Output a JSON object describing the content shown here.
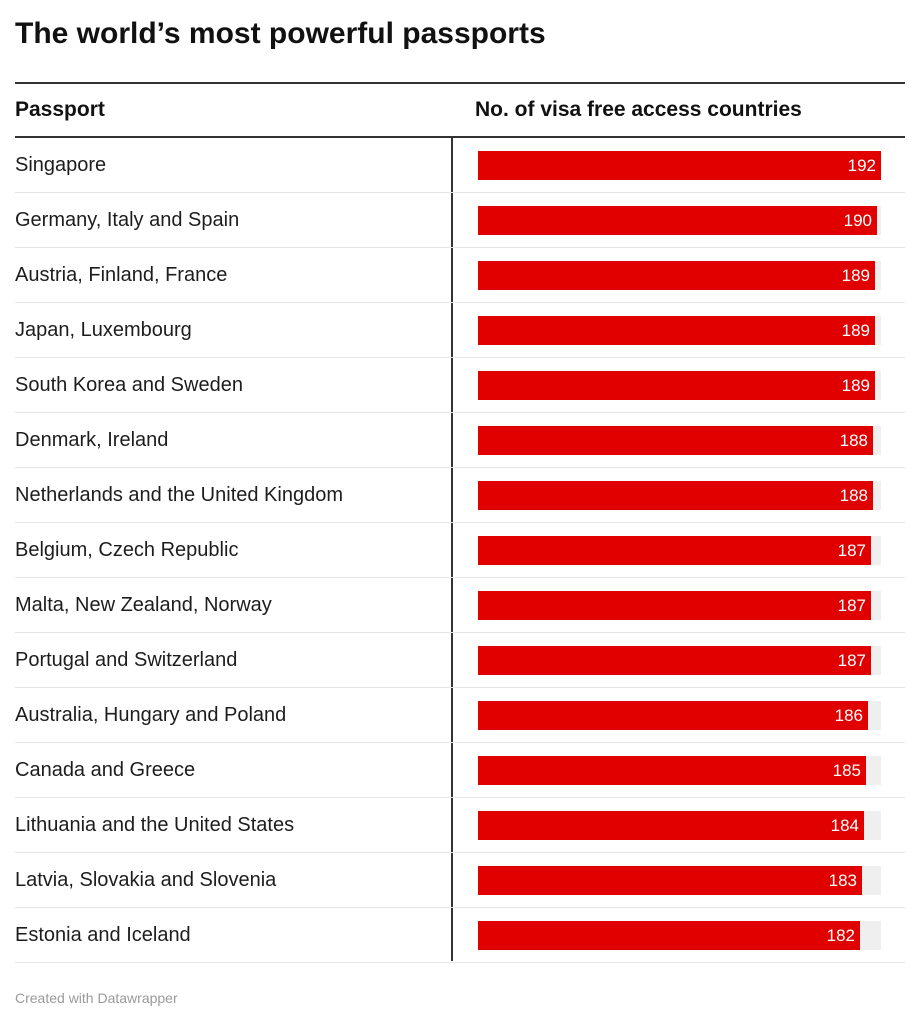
{
  "title": "The world’s most powerful passports",
  "headers": {
    "passport": "Passport",
    "visa": "No. of visa free access countries"
  },
  "credit": "Created with Datawrapper",
  "colors": {
    "bar": "#e00000",
    "bar_background": "#efefef",
    "rule": "#333333"
  },
  "chart_data": {
    "type": "bar",
    "categories": [
      "Singapore",
      "Germany, Italy and Spain",
      "Austria, Finland, France",
      "Japan, Luxembourg",
      "South Korea and Sweden",
      "Denmark, Ireland",
      "Netherlands and the United Kingdom",
      "Belgium, Czech Republic",
      "Malta, New Zealand, Norway",
      "Portugal and Switzerland",
      "Australia, Hungary and Poland",
      "Canada and Greece",
      "Lithuania and the United States",
      "Latvia, Slovakia and Slovenia",
      "Estonia and Iceland"
    ],
    "values": [
      192,
      190,
      189,
      189,
      189,
      188,
      188,
      187,
      187,
      187,
      186,
      185,
      184,
      183,
      182
    ],
    "title": "The world’s most powerful passports",
    "xlabel": "No. of visa free access countries",
    "ylabel": "Passport",
    "xlim": [
      0,
      192
    ],
    "orientation": "horizontal",
    "data_labels": true,
    "grid": false
  }
}
